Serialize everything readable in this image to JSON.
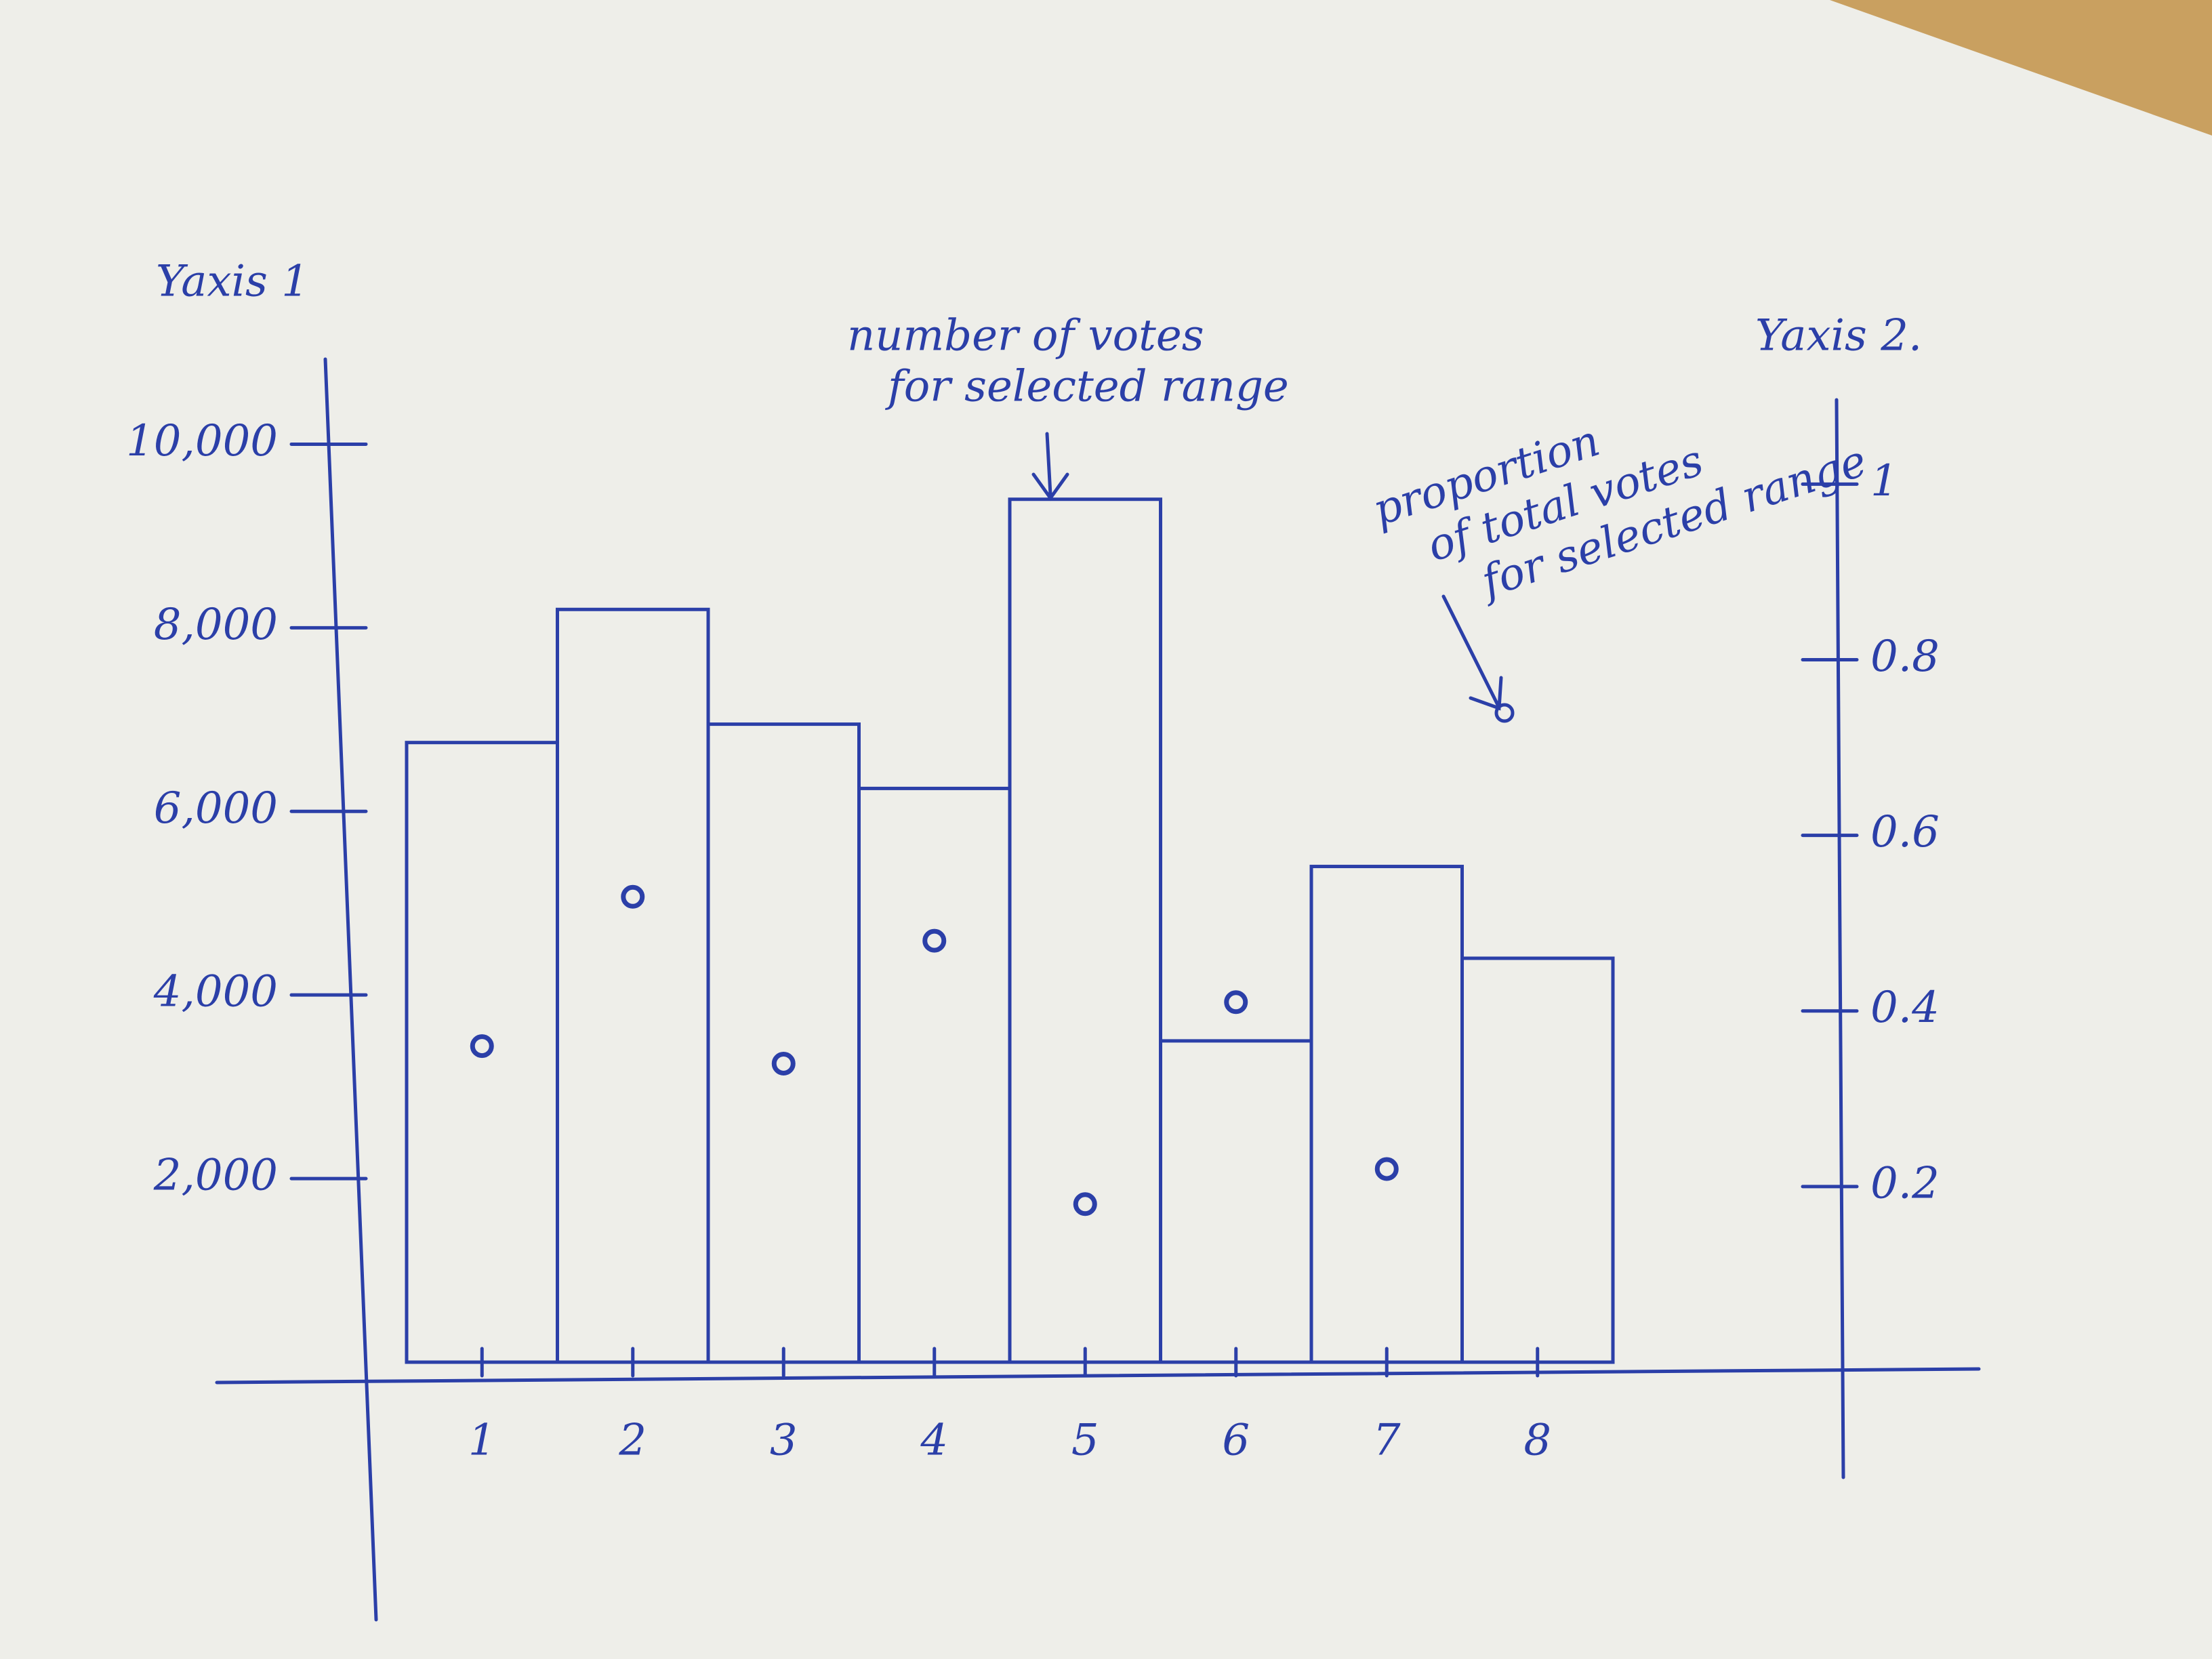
{
  "chart_data": {
    "type": "bar_point",
    "y_label": "Yaxis 1",
    "y2_label": "Yaxis 2.",
    "annotations": [
      [
        "number of votes",
        "for selected range"
      ],
      [
        "proportion",
        "of total votes",
        "for selected range"
      ]
    ],
    "categories": [
      "1",
      "2",
      "3",
      "4",
      "5",
      "6",
      "7",
      "8"
    ],
    "series": [
      {
        "color": "#2b3fa8",
        "values": [
          6750,
          8200,
          6950,
          6250,
          9400,
          3500,
          5400,
          4400
        ]
      },
      {
        "color": "#2b3fa8",
        "axis": "y2",
        "values": [
          0.36,
          0.53,
          0.34,
          0.48,
          0.18,
          0.41,
          0.22,
          null
        ]
      }
    ],
    "ylim": [
      0,
      11000
    ],
    "yticks": [
      {
        "value": 2000,
        "label": "2,000"
      },
      {
        "value": 4000,
        "label": "4,000"
      },
      {
        "value": 6000,
        "label": "6,000"
      },
      {
        "value": 8000,
        "label": "8,000"
      },
      {
        "value": 10000,
        "label": "10,000"
      }
    ],
    "y2lim": [
      0,
      1.15
    ],
    "y2ticks": [
      0.2,
      0.4,
      0.6,
      0.8,
      1
    ]
  }
}
